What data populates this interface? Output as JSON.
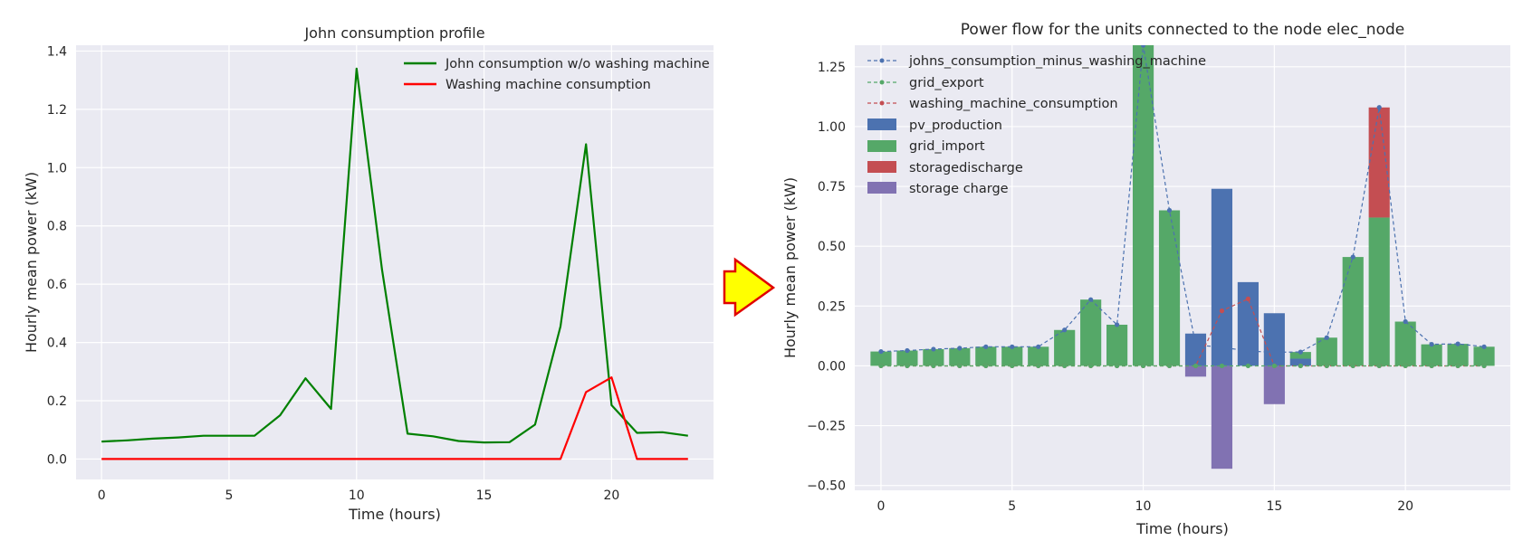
{
  "chart_data": [
    {
      "type": "line",
      "title": "John consumption profile",
      "xlabel": "Time (hours)",
      "ylabel": "Hourly mean power (kW)",
      "xlim": [
        -1,
        24
      ],
      "ylim": [
        -0.07,
        1.42
      ],
      "xticks": [
        0,
        5,
        10,
        15,
        20
      ],
      "yticks": [
        0.0,
        0.2,
        0.4,
        0.6,
        0.8,
        1.0,
        1.2,
        1.4
      ],
      "ytick_labels": [
        "0.0",
        "0.2",
        "0.4",
        "0.6",
        "0.8",
        "1.0",
        "1.2",
        "1.4"
      ],
      "grid": true,
      "legend_position": "top-right",
      "x": [
        0,
        1,
        2,
        3,
        4,
        5,
        6,
        7,
        8,
        9,
        10,
        11,
        12,
        13,
        14,
        15,
        16,
        17,
        18,
        19,
        20,
        21,
        22,
        23
      ],
      "series": [
        {
          "name": "John consumption w/o washing machine",
          "color": "#008000",
          "values": [
            0.06,
            0.064,
            0.07,
            0.074,
            0.08,
            0.08,
            0.08,
            0.15,
            0.277,
            0.172,
            1.34,
            0.65,
            0.087,
            0.078,
            0.062,
            0.057,
            0.058,
            0.118,
            0.455,
            1.08,
            0.185,
            0.09,
            0.092,
            0.08
          ]
        },
        {
          "name": "Washing machine consumption",
          "color": "#ff0000",
          "values": [
            0,
            0,
            0,
            0,
            0,
            0,
            0,
            0,
            0,
            0,
            0,
            0,
            0,
            0,
            0,
            0,
            0,
            0,
            0,
            0.23,
            0.28,
            0,
            0,
            0
          ]
        }
      ]
    },
    {
      "type": "bar",
      "title": "Power flow for the units connected to the node elec_node",
      "xlabel": "Time (hours)",
      "ylabel": "Hourly mean power (kW)",
      "xlim": [
        -1,
        24
      ],
      "ylim": [
        -0.52,
        1.34
      ],
      "xticks": [
        0,
        5,
        10,
        15,
        20
      ],
      "yticks": [
        -0.5,
        -0.25,
        0.0,
        0.25,
        0.5,
        0.75,
        1.0,
        1.25
      ],
      "ytick_labels": [
        "−0.50",
        "−0.25",
        "0.00",
        "0.25",
        "0.50",
        "0.75",
        "1.00",
        "1.25"
      ],
      "grid": true,
      "legend_position": "top-left",
      "x": [
        0,
        1,
        2,
        3,
        4,
        5,
        6,
        7,
        8,
        9,
        10,
        11,
        12,
        13,
        14,
        15,
        16,
        17,
        18,
        19,
        20,
        21,
        22,
        23
      ],
      "line_series": [
        {
          "name": "johns_consumption_minus_washing_machine",
          "color": "#4c72b0",
          "values": [
            0.06,
            0.064,
            0.07,
            0.074,
            0.08,
            0.08,
            0.08,
            0.15,
            0.277,
            0.172,
            1.34,
            0.65,
            0.087,
            0.078,
            0.062,
            0.057,
            0.058,
            0.118,
            0.455,
            1.08,
            0.185,
            0.09,
            0.092,
            0.08
          ]
        },
        {
          "name": "grid_export",
          "color": "#55a868",
          "values": [
            0,
            0,
            0,
            0,
            0,
            0,
            0,
            0,
            0,
            0,
            0,
            0,
            0,
            0,
            0,
            0,
            0,
            0,
            0,
            0,
            0,
            0,
            0,
            0
          ]
        },
        {
          "name": "washing_machine_consumption",
          "color": "#c44e52",
          "values": [
            0,
            0,
            0,
            0,
            0,
            0,
            0,
            0,
            0,
            0,
            0,
            0,
            0,
            0.23,
            0.28,
            0,
            0,
            0,
            0,
            0,
            0,
            0,
            0,
            0
          ]
        }
      ],
      "bar_series": [
        {
          "name": "pv_production",
          "color": "#4c72b0",
          "values": [
            0,
            0,
            0,
            0,
            0,
            0,
            0,
            0,
            0,
            0,
            0,
            0,
            0.135,
            0.74,
            0.35,
            0.22,
            0.03,
            0,
            0,
            0,
            0,
            0,
            0,
            0
          ]
        },
        {
          "name": "grid_import",
          "color": "#55a868",
          "values": [
            0.06,
            0.064,
            0.07,
            0.074,
            0.08,
            0.08,
            0.08,
            0.15,
            0.277,
            0.172,
            1.34,
            0.65,
            0,
            0,
            0,
            0,
            0.028,
            0.118,
            0.455,
            0.62,
            0.185,
            0.09,
            0.092,
            0.08
          ]
        },
        {
          "name": "storagedischarge",
          "color": "#c44e52",
          "values": [
            0,
            0,
            0,
            0,
            0,
            0,
            0,
            0,
            0,
            0,
            0,
            0,
            0,
            0,
            0,
            0,
            0,
            0,
            0,
            0.46,
            0,
            0,
            0,
            0
          ]
        },
        {
          "name": "storage charge",
          "color": "#8172b2",
          "values": [
            0,
            0,
            0,
            0,
            0,
            0,
            0,
            0,
            0,
            0,
            0,
            0,
            -0.045,
            -0.43,
            0,
            -0.16,
            0,
            0,
            0,
            0,
            0,
            0,
            0,
            0
          ]
        }
      ]
    }
  ],
  "arrow": {
    "fill": "#ffff00",
    "stroke": "#e00000"
  },
  "theme": {
    "plot_background": "#eaeaf2",
    "grid": "#ffffff",
    "text": "#262626"
  }
}
